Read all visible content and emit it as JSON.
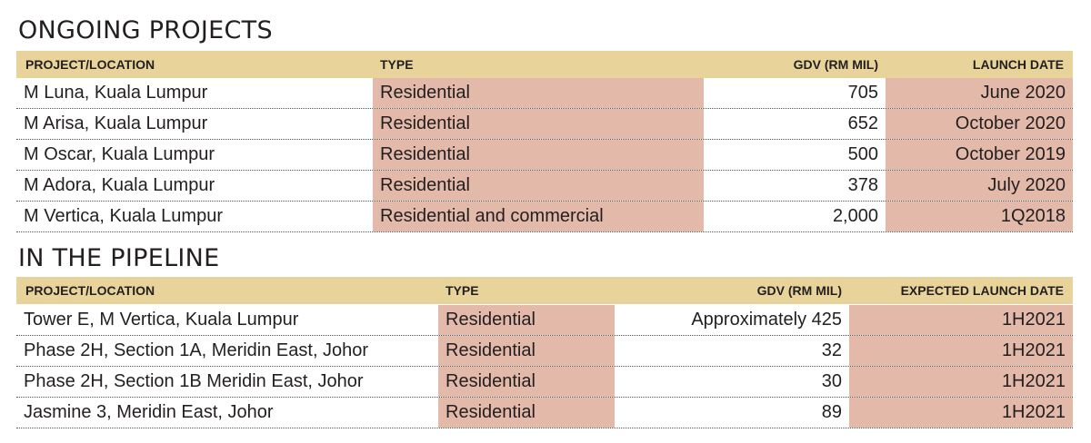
{
  "ongoing": {
    "title": "ONGOING PROJECTS",
    "headers": {
      "project": "PROJECT/LOCATION",
      "type": "TYPE",
      "gdv": "GDV (RM MIL)",
      "date": "LAUNCH DATE"
    },
    "rows": [
      {
        "project": "M Luna, Kuala Lumpur",
        "type": "Residential",
        "gdv": "705",
        "date": "June 2020"
      },
      {
        "project": "M Arisa, Kuala Lumpur",
        "type": "Residential",
        "gdv": "652",
        "date": "October 2020"
      },
      {
        "project": "M Oscar, Kuala Lumpur",
        "type": "Residential",
        "gdv": "500",
        "date": "October 2019"
      },
      {
        "project": "M Adora, Kuala Lumpur",
        "type": "Residential",
        "gdv": "378",
        "date": "July 2020"
      },
      {
        "project": "M Vertica, Kuala Lumpur",
        "type": "Residential and commercial",
        "gdv": "2,000",
        "date": "1Q2018"
      }
    ]
  },
  "pipeline": {
    "title": "IN THE PIPELINE",
    "headers": {
      "project": "PROJECT/LOCATION",
      "type": "TYPE",
      "gdv": "GDV (RM MIL)",
      "date": "EXPECTED LAUNCH DATE"
    },
    "rows": [
      {
        "project": "Tower E, M Vertica, Kuala Lumpur",
        "type": "Residential",
        "gdv": "Approximately 425",
        "date": "1H2021"
      },
      {
        "project": "Phase 2H, Section 1A, Meridin East, Johor",
        "type": "Residential",
        "gdv": "32",
        "date": "1H2021"
      },
      {
        "project": "Phase 2H, Section 1B Meridin East, Johor",
        "type": "Residential",
        "gdv": "30",
        "date": "1H2021"
      },
      {
        "project": "Jasmine 3, Meridin East, Johor",
        "type": "Residential",
        "gdv": "89",
        "date": "1H2021"
      }
    ]
  },
  "colors": {
    "header_bg": "#e8d49a",
    "highlight": "#e3b9aa",
    "text": "#231f20"
  }
}
